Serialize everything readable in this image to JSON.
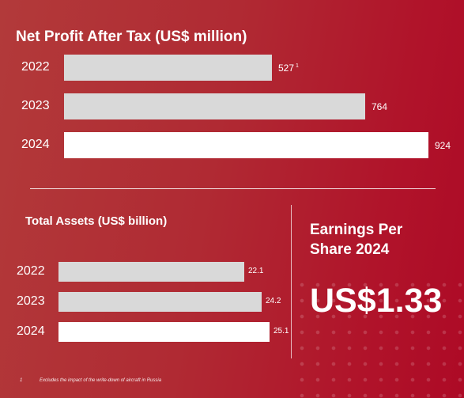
{
  "chart_data": [
    {
      "type": "bar",
      "orientation": "horizontal",
      "title": "Net Profit After Tax (US$ million)",
      "categories": [
        "2022",
        "2023",
        "2024"
      ],
      "values": [
        527,
        764,
        924
      ],
      "value_labels": [
        "527",
        "764",
        "924"
      ],
      "value_notes": [
        "1",
        "",
        ""
      ],
      "colors": [
        "#d9d9d9",
        "#d9d9d9",
        "#ffffff"
      ]
    },
    {
      "type": "bar",
      "orientation": "horizontal",
      "title": "Total Assets (US$ billion)",
      "categories": [
        "2022",
        "2023",
        "2024"
      ],
      "values": [
        22.1,
        24.2,
        25.1
      ],
      "value_labels": [
        "22.1",
        "24.2",
        "25.1"
      ],
      "colors": [
        "#d9d9d9",
        "#d9d9d9",
        "#ffffff"
      ]
    }
  ],
  "eps": {
    "title": "Earnings Per Share 2024",
    "value": "US$1.33"
  },
  "footnote": {
    "marker": "1",
    "text": "Excludes the impact of the write-down of aircraft in Russia"
  }
}
